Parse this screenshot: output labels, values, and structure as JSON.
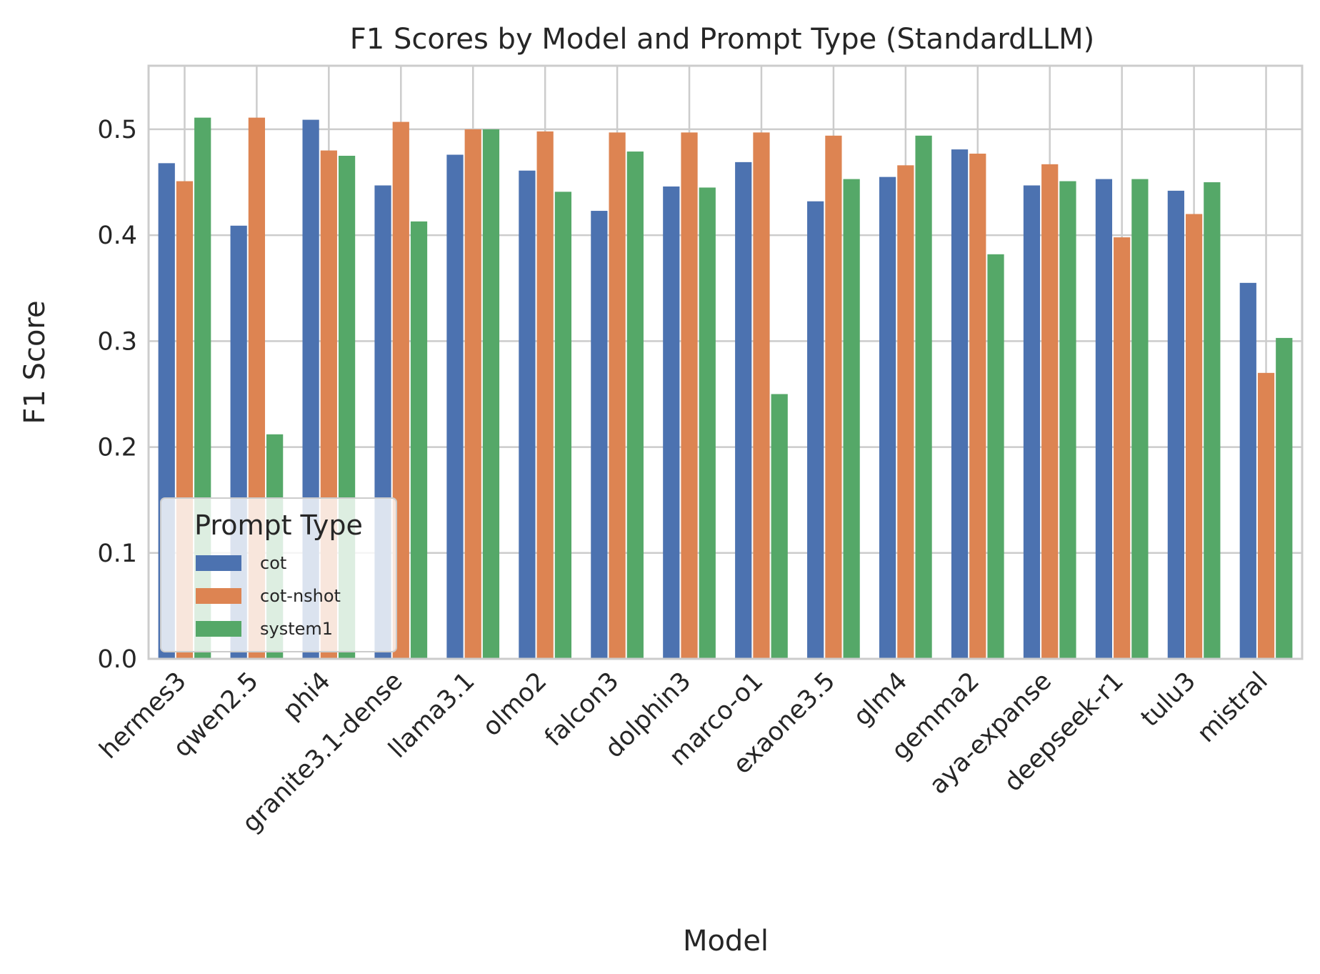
{
  "chart_data": {
    "type": "bar",
    "title": "F1 Scores by Model and Prompt Type (StandardLLM)",
    "xlabel": "Model",
    "ylabel": "F1 Score",
    "ylim": [
      0,
      0.56
    ],
    "yticks": [
      "0.0",
      "0.1",
      "0.2",
      "0.3",
      "0.4",
      "0.5"
    ],
    "grid": true,
    "legend_title": "Prompt Type",
    "legend_position": "lower-left",
    "categories": [
      "hermes3",
      "qwen2.5",
      "phi4",
      "granite3.1-dense",
      "llama3.1",
      "olmo2",
      "falcon3",
      "dolphin3",
      "marco-o1",
      "exaone3.5",
      "glm4",
      "gemma2",
      "aya-expanse",
      "deepseek-r1",
      "tulu3",
      "mistral"
    ],
    "series": [
      {
        "name": "cot",
        "color": "#4c72b0",
        "values": [
          0.468,
          0.409,
          0.509,
          0.447,
          0.476,
          0.461,
          0.423,
          0.446,
          0.469,
          0.432,
          0.455,
          0.481,
          0.447,
          0.453,
          0.442,
          0.355
        ]
      },
      {
        "name": "cot-nshot",
        "color": "#dd8452",
        "values": [
          0.451,
          0.511,
          0.48,
          0.507,
          0.5,
          0.498,
          0.497,
          0.497,
          0.497,
          0.494,
          0.466,
          0.477,
          0.467,
          0.398,
          0.42,
          0.27
        ]
      },
      {
        "name": "system1",
        "color": "#55a868",
        "values": [
          0.511,
          0.212,
          0.475,
          0.413,
          0.5,
          0.441,
          0.479,
          0.445,
          0.25,
          0.453,
          0.494,
          0.382,
          0.451,
          0.453,
          0.45,
          0.303
        ]
      }
    ]
  }
}
